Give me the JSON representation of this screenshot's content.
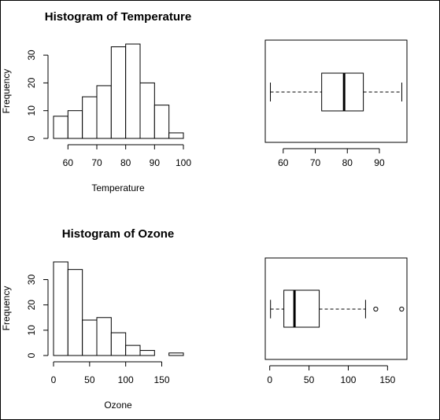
{
  "chart_data": [
    {
      "type": "bar",
      "title": "Histogram of Temperature",
      "xlabel": "Temperature",
      "ylabel": "Frequency",
      "bins": [
        [
          55,
          60
        ],
        [
          60,
          65
        ],
        [
          65,
          70
        ],
        [
          70,
          75
        ],
        [
          75,
          80
        ],
        [
          80,
          85
        ],
        [
          85,
          90
        ],
        [
          90,
          95
        ],
        [
          95,
          100
        ]
      ],
      "values": [
        8,
        10,
        15,
        19,
        33,
        34,
        20,
        12,
        2
      ],
      "xticks": [
        "60",
        "70",
        "80",
        "90",
        "100"
      ],
      "yticks": [
        "0",
        "10",
        "20",
        "30"
      ],
      "xlim": [
        55,
        100
      ],
      "ylim": [
        0,
        34
      ]
    },
    {
      "type": "boxplot",
      "orientation": "horizontal",
      "variable": "Temperature",
      "whisker_low": 56,
      "q1": 72,
      "median": 79,
      "q3": 85,
      "whisker_high": 97,
      "outliers": [],
      "xticks": [
        "60",
        "70",
        "80",
        "90"
      ],
      "xlim": [
        54.4,
        98.6
      ]
    },
    {
      "type": "bar",
      "title": "Histogram of Ozone",
      "xlabel": "Ozone",
      "ylabel": "Frequency",
      "bins": [
        [
          0,
          20
        ],
        [
          20,
          40
        ],
        [
          40,
          60
        ],
        [
          60,
          80
        ],
        [
          80,
          100
        ],
        [
          100,
          120
        ],
        [
          120,
          140
        ],
        [
          140,
          160
        ],
        [
          160,
          180
        ]
      ],
      "values": [
        37,
        34,
        14,
        15,
        9,
        4,
        2,
        0,
        1
      ],
      "xticks": [
        "0",
        "50",
        "100",
        "150"
      ],
      "yticks": [
        "0",
        "10",
        "20",
        "30"
      ],
      "xlim": [
        0,
        180
      ],
      "ylim": [
        0,
        37
      ]
    },
    {
      "type": "boxplot",
      "orientation": "horizontal",
      "variable": "Ozone",
      "whisker_low": 1,
      "q1": 18,
      "median": 31.5,
      "q3": 63,
      "whisker_high": 122,
      "outliers": [
        135,
        168
      ],
      "xticks": [
        "0",
        "50",
        "100",
        "150"
      ],
      "xlim": [
        -5.7,
        174.7
      ]
    }
  ]
}
